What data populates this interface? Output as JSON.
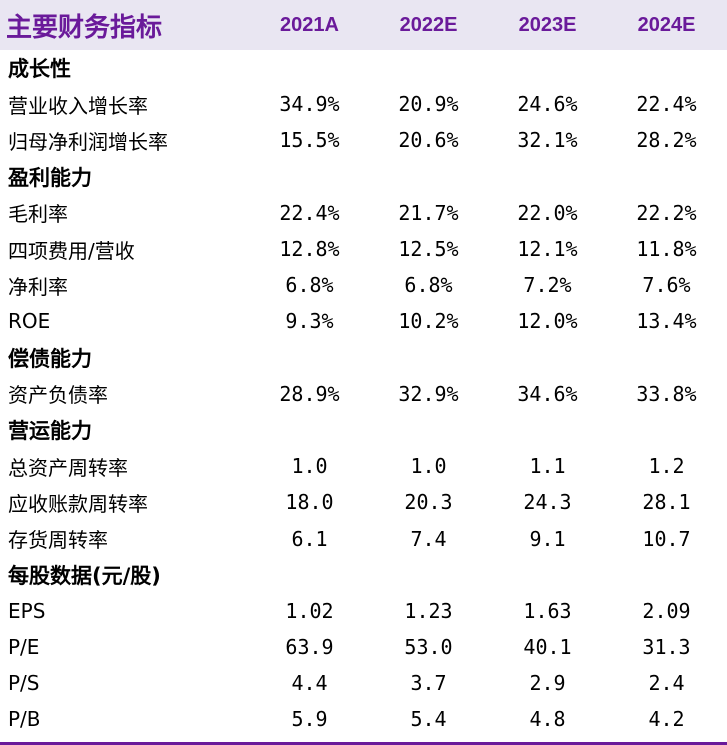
{
  "header": {
    "title": "主要财务指标",
    "years": [
      "2021A",
      "2022E",
      "2023E",
      "2024E"
    ]
  },
  "rows": [
    {
      "type": "section",
      "label": "成长性"
    },
    {
      "type": "data",
      "label": "营业收入增长率",
      "values": [
        "34.9%",
        "20.9%",
        "24.6%",
        "22.4%"
      ]
    },
    {
      "type": "data",
      "label": "归母净利润增长率",
      "values": [
        "15.5%",
        "20.6%",
        "32.1%",
        "28.2%"
      ]
    },
    {
      "type": "section",
      "label": "盈利能力"
    },
    {
      "type": "data",
      "label": "毛利率",
      "values": [
        "22.4%",
        "21.7%",
        "22.0%",
        "22.2%"
      ]
    },
    {
      "type": "data",
      "label": "四项费用/营收",
      "values": [
        "12.8%",
        "12.5%",
        "12.1%",
        "11.8%"
      ]
    },
    {
      "type": "data",
      "label": "净利率",
      "values": [
        "6.8%",
        "6.8%",
        "7.2%",
        "7.6%"
      ]
    },
    {
      "type": "data",
      "label": "ROE",
      "values": [
        "9.3%",
        "10.2%",
        "12.0%",
        "13.4%"
      ]
    },
    {
      "type": "section",
      "label": "偿债能力"
    },
    {
      "type": "data",
      "label": "资产负债率",
      "values": [
        "28.9%",
        "32.9%",
        "34.6%",
        "33.8%"
      ]
    },
    {
      "type": "section",
      "label": "营运能力"
    },
    {
      "type": "data",
      "label": "总资产周转率",
      "values": [
        "1.0",
        "1.0",
        "1.1",
        "1.2"
      ]
    },
    {
      "type": "data",
      "label": "应收账款周转率",
      "values": [
        "18.0",
        "20.3",
        "24.3",
        "28.1"
      ]
    },
    {
      "type": "data",
      "label": "存货周转率",
      "values": [
        "6.1",
        "7.4",
        "9.1",
        "10.7"
      ]
    },
    {
      "type": "section",
      "label": "每股数据(元/股)"
    },
    {
      "type": "data",
      "label": "EPS",
      "values": [
        "1.02",
        "1.23",
        "1.63",
        "2.09"
      ]
    },
    {
      "type": "data",
      "label": "P/E",
      "values": [
        "63.9",
        "53.0",
        "40.1",
        "31.3"
      ]
    },
    {
      "type": "data",
      "label": "P/S",
      "values": [
        "4.4",
        "3.7",
        "2.9",
        "2.4"
      ]
    },
    {
      "type": "data",
      "label": "P/B",
      "values": [
        "5.9",
        "5.4",
        "4.8",
        "4.2"
      ]
    }
  ],
  "colors": {
    "accent": "#6a1a9a",
    "header_bg": "#e9e6f2"
  }
}
